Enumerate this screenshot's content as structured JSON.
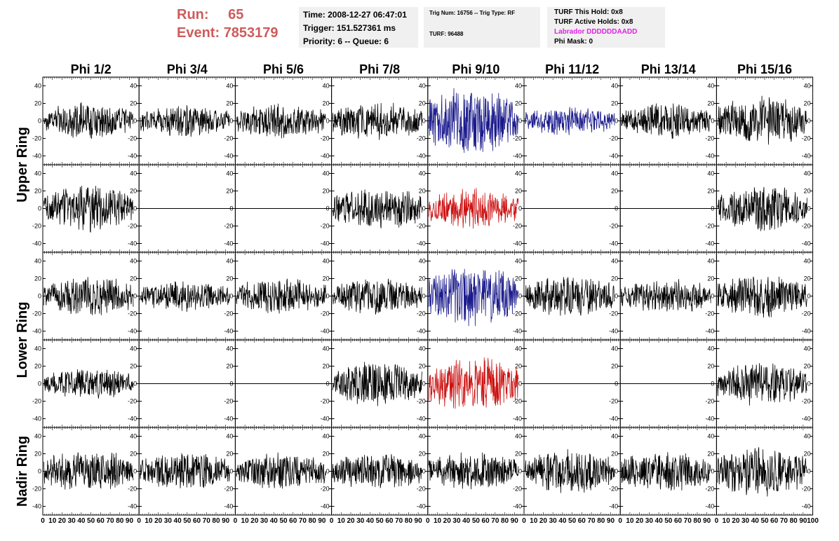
{
  "header": {
    "run_label": "Run:",
    "run_value": "65",
    "event_label": "Event:",
    "event_value": "7853179",
    "time_line": "Time: 2008-12-27 06:47:01",
    "trigger_line": "Trigger: 151.527361 ms",
    "priority_line": "Priority: 6 -- Queue: 6",
    "trig_line": "Trig Num: 16756 -- Trig Type: RF",
    "turf_line": "TURF: 96488",
    "turf_hold_line": "TURF This Hold: 0x8",
    "turf_active_line": "TURF Active Holds: 0x8",
    "labrador_line": "Labrador DDDDDDAADD",
    "phi_mask_line": "Phi Mask: 0"
  },
  "colors": {
    "run_text": "#cd5c5c",
    "labrador_text": "#e020e0",
    "info_box_bg": "#f0f0f0",
    "trace_default": "#000000",
    "trace_blue": "#1a1a8c",
    "trace_red": "#cc1111"
  },
  "chart_data": {
    "type": "line",
    "columns": [
      "Phi 1/2",
      "Phi 3/4",
      "Phi 5/6",
      "Phi 7/8",
      "Phi 9/10",
      "Phi 11/12",
      "Phi 13/14",
      "Phi 15/16"
    ],
    "row_groups": [
      {
        "label": "Upper Ring",
        "rows": [
          0,
          1
        ]
      },
      {
        "label": "Lower Ring",
        "rows": [
          2,
          3
        ]
      },
      {
        "label": "Nadir Ring",
        "rows": [
          4
        ]
      }
    ],
    "xlim": [
      0,
      100
    ],
    "ylim": [
      -50,
      50
    ],
    "yticks": [
      40,
      20,
      0,
      -20,
      -40
    ],
    "xticks": [
      0,
      10,
      20,
      30,
      40,
      50,
      60,
      70,
      80,
      90,
      100
    ],
    "xtick_labels_compact": "0 1020304050607080901001020304050607080901001020304050607080901001020304050607080901001020304050607080901001020304050607080901001020304050607080901001020304050607080901000",
    "grid": false,
    "traces": [
      [
        {
          "color": "black",
          "amp": 12,
          "flat": false
        },
        {
          "color": "black",
          "amp": 10,
          "flat": false
        },
        {
          "color": "black",
          "amp": 11,
          "flat": false
        },
        {
          "color": "black",
          "amp": 12,
          "flat": false
        },
        {
          "color": "blue",
          "amp": 22,
          "flat": false
        },
        {
          "color": "blue",
          "amp": 9,
          "flat": false
        },
        {
          "color": "black",
          "amp": 11,
          "flat": false
        },
        {
          "color": "black",
          "amp": 16,
          "flat": false
        }
      ],
      [
        {
          "color": "black",
          "amp": 15,
          "flat": false
        },
        {
          "color": "black",
          "amp": 0,
          "flat": true
        },
        {
          "color": "black",
          "amp": 0,
          "flat": true
        },
        {
          "color": "black",
          "amp": 14,
          "flat": false
        },
        {
          "color": "red",
          "amp": 13,
          "flat": false
        },
        {
          "color": "black",
          "amp": 0,
          "flat": true
        },
        {
          "color": "black",
          "amp": 0,
          "flat": true
        },
        {
          "color": "black",
          "amp": 15,
          "flat": false
        }
      ],
      [
        {
          "color": "black",
          "amp": 13,
          "flat": false
        },
        {
          "color": "black",
          "amp": 10,
          "flat": false
        },
        {
          "color": "black",
          "amp": 12,
          "flat": false
        },
        {
          "color": "black",
          "amp": 12,
          "flat": false
        },
        {
          "color": "blue",
          "amp": 20,
          "flat": false
        },
        {
          "color": "black",
          "amp": 13,
          "flat": false
        },
        {
          "color": "black",
          "amp": 11,
          "flat": false
        },
        {
          "color": "black",
          "amp": 14,
          "flat": false
        }
      ],
      [
        {
          "color": "black",
          "amp": 10,
          "flat": false
        },
        {
          "color": "black",
          "amp": 0,
          "flat": true
        },
        {
          "color": "black",
          "amp": 0,
          "flat": true
        },
        {
          "color": "black",
          "amp": 15,
          "flat": false
        },
        {
          "color": "red",
          "amp": 18,
          "flat": false
        },
        {
          "color": "black",
          "amp": 0,
          "flat": true
        },
        {
          "color": "black",
          "amp": 0,
          "flat": true
        },
        {
          "color": "black",
          "amp": 14,
          "flat": false
        }
      ],
      [
        {
          "color": "black",
          "amp": 14,
          "flat": false
        },
        {
          "color": "black",
          "amp": 12,
          "flat": false
        },
        {
          "color": "black",
          "amp": 12,
          "flat": false
        },
        {
          "color": "black",
          "amp": 12,
          "flat": false
        },
        {
          "color": "black",
          "amp": 12,
          "flat": false
        },
        {
          "color": "black",
          "amp": 14,
          "flat": false
        },
        {
          "color": "black",
          "amp": 13,
          "flat": false
        },
        {
          "color": "black",
          "amp": 16,
          "flat": false
        }
      ]
    ]
  }
}
